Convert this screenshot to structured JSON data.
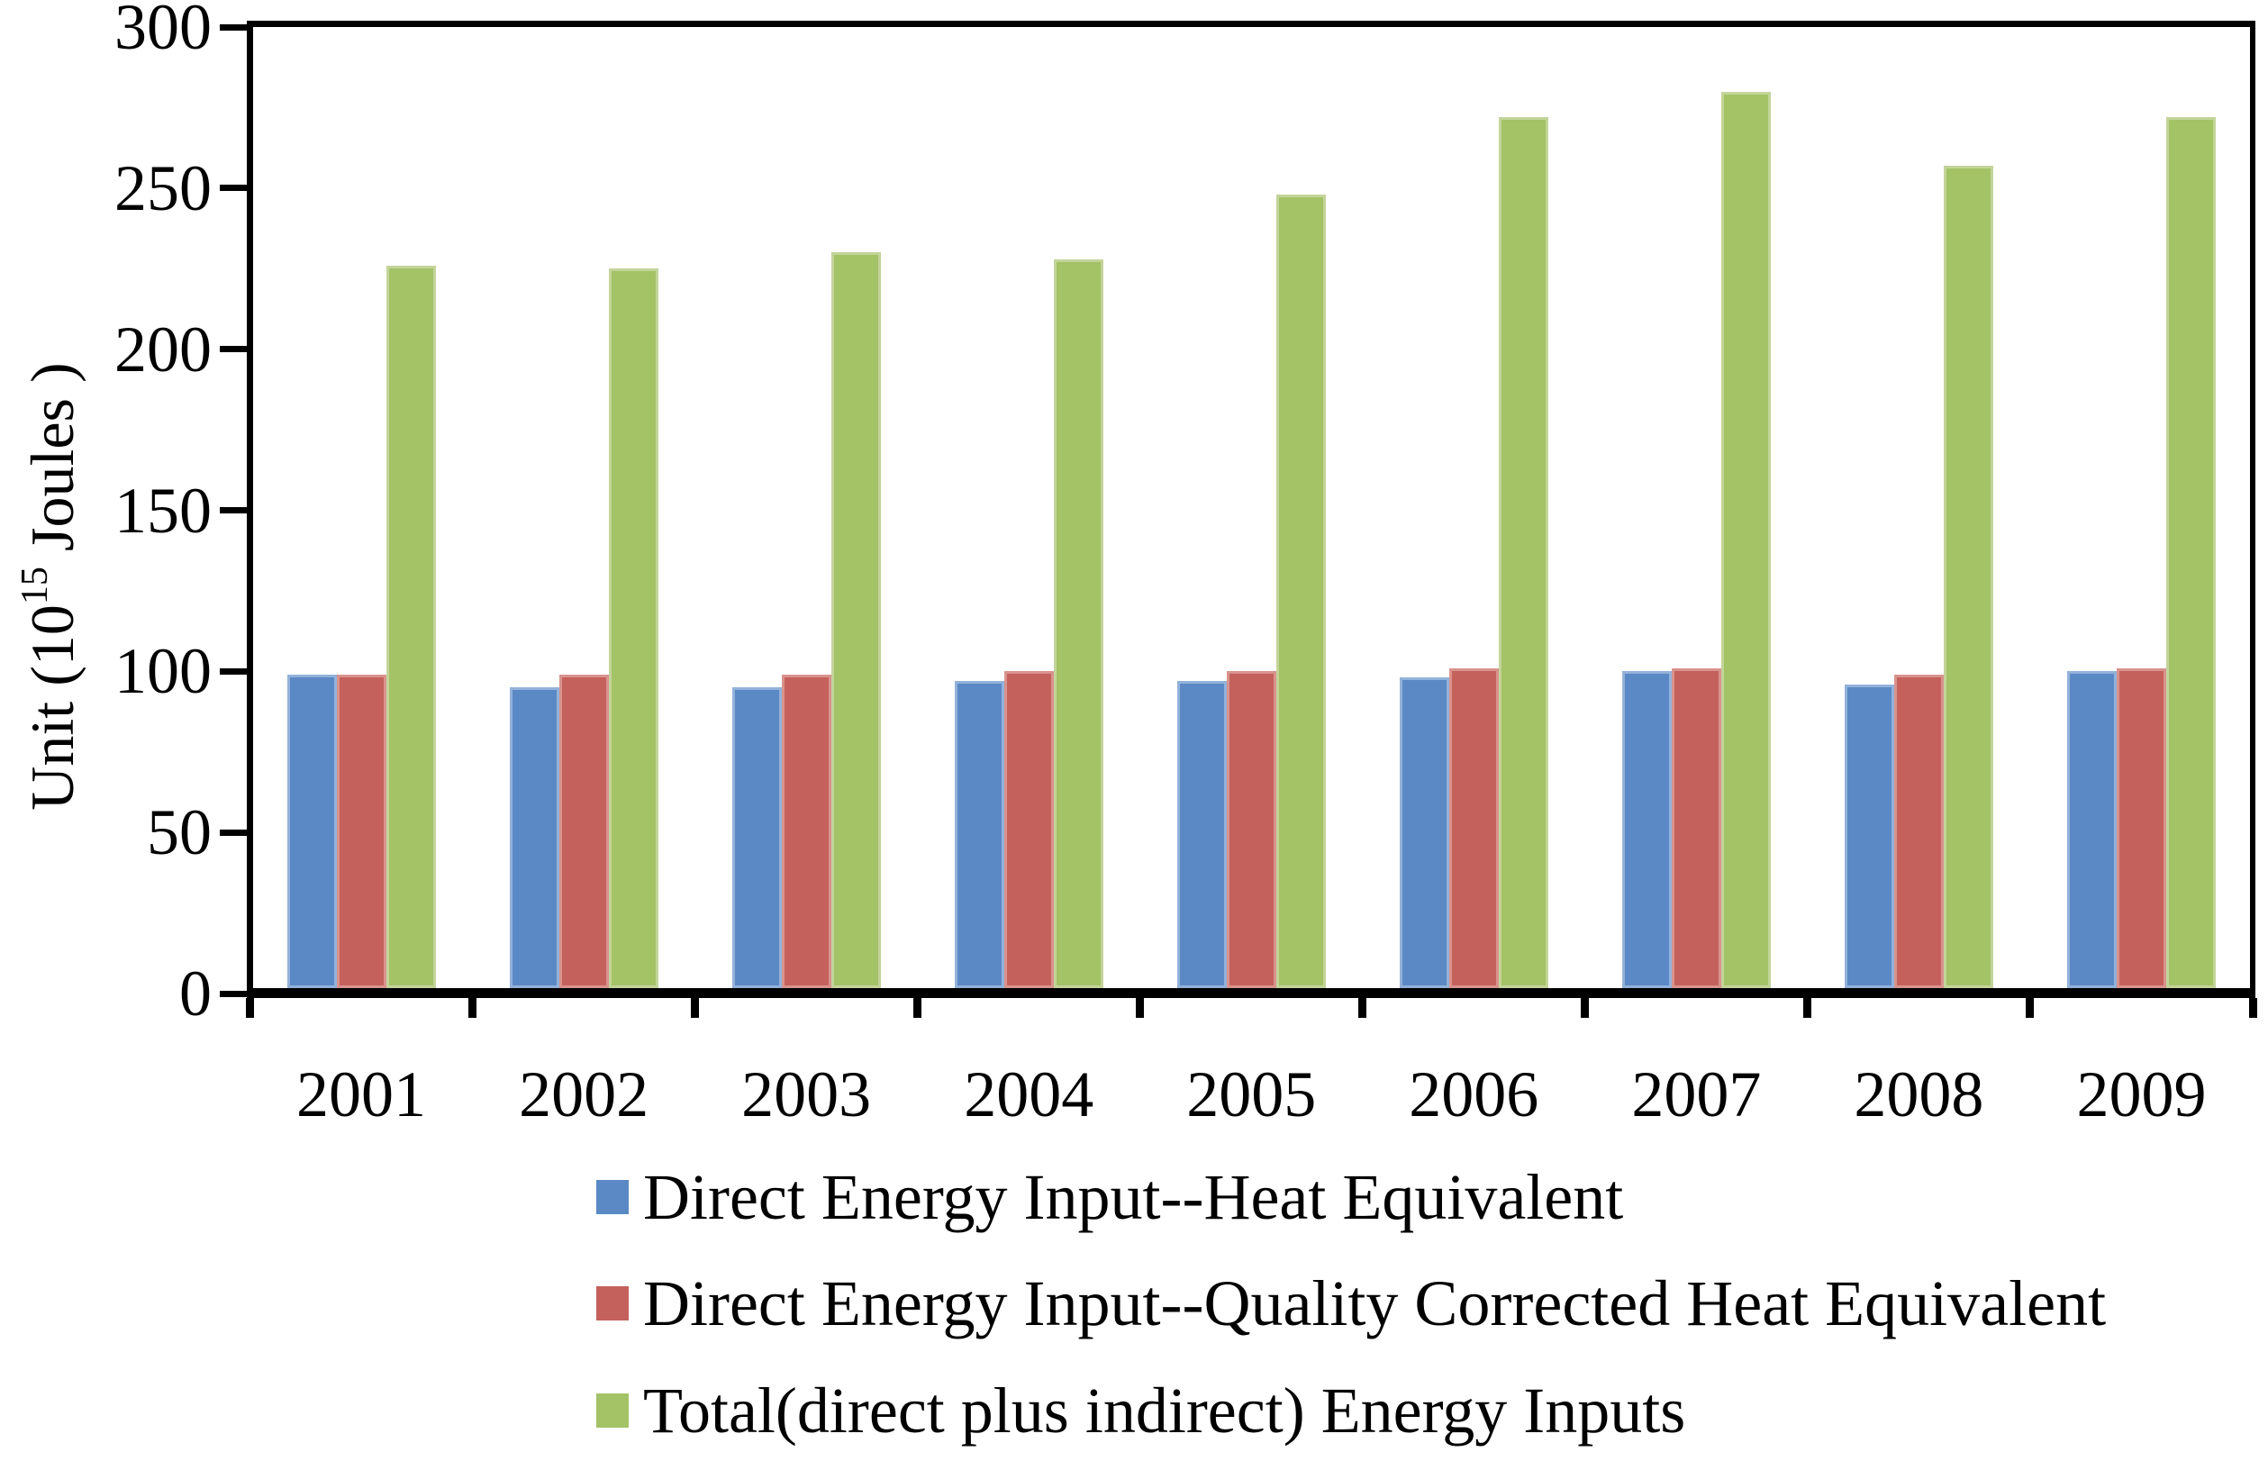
{
  "chart_data": {
    "type": "bar",
    "title": "",
    "categories": [
      "2001",
      "2002",
      "2003",
      "2004",
      "2005",
      "2006",
      "2007",
      "2008",
      "2009"
    ],
    "series": [
      {
        "name": "Direct Energy Input--Heat Equivalent",
        "color": "#5B89C5",
        "border_color": "#93B2DA",
        "values": [
          99,
          95,
          95,
          97,
          97,
          98,
          100,
          96,
          100
        ]
      },
      {
        "name": "Direct Energy Input--Quality Corrected Heat Equivalent",
        "color": "#C5615C",
        "border_color": "#D9938E",
        "values": [
          99,
          99,
          99,
          100,
          100,
          101,
          101,
          99,
          101
        ]
      },
      {
        "name": "Total(direct plus indirect) Energy Inputs",
        "color": "#A4C266",
        "border_color": "#C3D49A",
        "values": [
          226,
          225,
          230,
          228,
          248,
          272,
          280,
          257,
          272
        ]
      }
    ],
    "xlabel": "",
    "ylabel": {
      "prefix": "Unit (10",
      "exponent": "15",
      "suffix": " Joules )"
    },
    "ylim": [
      0,
      300
    ],
    "y_ticks": [
      0,
      50,
      100,
      150,
      200,
      250,
      300
    ],
    "grid": "off",
    "legend_position": "bottom-left",
    "axis_color": "#000000",
    "background_color": "#FFFFFF"
  }
}
